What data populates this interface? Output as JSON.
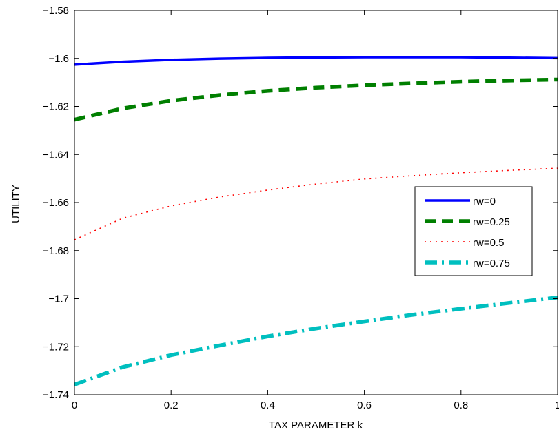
{
  "chart_data": {
    "type": "line",
    "title": "",
    "xlabel": "TAX PARAMETER  k",
    "ylabel": "UTILITY",
    "xlim": [
      0,
      1
    ],
    "ylim": [
      -1.74,
      -1.58
    ],
    "xticks": [
      0,
      0.2,
      0.4,
      0.6,
      0.8,
      1
    ],
    "yticks": [
      -1.58,
      -1.6,
      -1.62,
      -1.64,
      -1.66,
      -1.68,
      -1.7,
      -1.72,
      -1.74
    ],
    "x_tick_labels": [
      "0",
      "0.2",
      "0.4",
      "0.6",
      "0.8",
      "1"
    ],
    "y_tick_labels": [
      "−1.58",
      "−1.6",
      "−1.62",
      "−1.64",
      "−1.66",
      "−1.68",
      "−1.7",
      "−1.72",
      "−1.74"
    ],
    "grid": false,
    "legend_position": "right",
    "x": [
      0,
      0.1,
      0.2,
      0.3,
      0.4,
      0.5,
      0.6,
      0.7,
      0.8,
      0.9,
      1.0
    ],
    "series": [
      {
        "name": "rw=0",
        "color": "#0000ff",
        "style": "solid",
        "values": [
          -1.6026,
          -1.6014,
          -1.6006,
          -1.6001,
          -1.5998,
          -1.5996,
          -1.5995,
          -1.5995,
          -1.5995,
          -1.5997,
          -1.5999
        ]
      },
      {
        "name": "rw=0.25",
        "color": "#007f00",
        "style": "dashed",
        "values": [
          -1.6255,
          -1.6208,
          -1.6176,
          -1.6153,
          -1.6135,
          -1.6122,
          -1.6112,
          -1.6104,
          -1.6097,
          -1.6092,
          -1.6088
        ]
      },
      {
        "name": "rw=0.5",
        "color": "#ff0000",
        "style": "dotted",
        "values": [
          -1.6755,
          -1.6665,
          -1.6614,
          -1.6577,
          -1.6548,
          -1.6523,
          -1.6502,
          -1.6488,
          -1.6476,
          -1.6466,
          -1.6457
        ]
      },
      {
        "name": "rw=0.75",
        "color": "#00bfbf",
        "style": "dashdot",
        "values": [
          -1.7358,
          -1.7285,
          -1.7235,
          -1.7195,
          -1.7157,
          -1.7124,
          -1.7095,
          -1.7067,
          -1.7042,
          -1.7018,
          -1.6995
        ]
      }
    ]
  }
}
